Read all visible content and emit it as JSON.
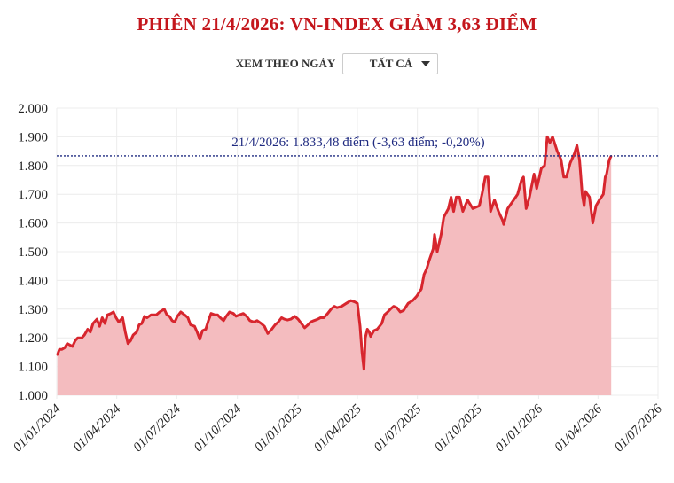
{
  "header": {
    "title": "PHIÊN 21/4/2026: VN-INDEX GIẢM 3,63 ĐIỂM"
  },
  "filter": {
    "label": "XEM THEO NGÀY",
    "selected": "TẤT CẢ",
    "icon": "caret-down-icon"
  },
  "colors": {
    "title": "#c4161c",
    "line": "#d7262e",
    "area": "#f4bcbf",
    "reference_line": "#1f2a80",
    "grid": "#ececec"
  },
  "chart_data": {
    "type": "area",
    "title": "",
    "xlabel": "",
    "ylabel": "",
    "ylim": [
      1000,
      2000
    ],
    "xlim": [
      "2024-01-01",
      "2026-07-01"
    ],
    "grid": true,
    "yticks": [
      "1.000",
      "1.100",
      "1.200",
      "1.300",
      "1.400",
      "1.500",
      "1.600",
      "1.700",
      "1.800",
      "1.900",
      "2.000"
    ],
    "ytick_values": [
      1000,
      1100,
      1200,
      1300,
      1400,
      1500,
      1600,
      1700,
      1800,
      1900,
      2000
    ],
    "xticks": [
      "01/01/2024",
      "01/04/2024",
      "01/07/2024",
      "01/10/2024",
      "01/01/2025",
      "01/04/2025",
      "01/07/2025",
      "01/10/2025",
      "01/01/2026",
      "01/04/2026",
      "01/07/2026"
    ],
    "xtick_dates": [
      "2024-01-01",
      "2024-04-01",
      "2024-07-01",
      "2024-10-01",
      "2025-01-01",
      "2025-04-01",
      "2025-07-01",
      "2025-10-01",
      "2026-01-01",
      "2026-04-01",
      "2026-07-01"
    ],
    "reference_line": {
      "value": 1833.48,
      "label": "21/4/2026: 1.833,48 điểm (-3,63 điểm; -0,20%)"
    },
    "x": [
      "2024-01-02",
      "2024-01-05",
      "2024-01-09",
      "2024-01-13",
      "2024-01-17",
      "2024-01-21",
      "2024-01-25",
      "2024-01-29",
      "2024-02-02",
      "2024-02-08",
      "2024-02-12",
      "2024-02-17",
      "2024-02-21",
      "2024-02-25",
      "2024-03-02",
      "2024-03-06",
      "2024-03-10",
      "2024-03-14",
      "2024-03-18",
      "2024-03-23",
      "2024-03-27",
      "2024-03-31",
      "2024-04-04",
      "2024-04-10",
      "2024-04-14",
      "2024-04-18",
      "2024-04-22",
      "2024-04-26",
      "2024-05-01",
      "2024-05-05",
      "2024-05-09",
      "2024-05-13",
      "2024-05-17",
      "2024-05-23",
      "2024-05-27",
      "2024-05-31",
      "2024-06-05",
      "2024-06-12",
      "2024-06-16",
      "2024-06-20",
      "2024-06-24",
      "2024-06-28",
      "2024-07-02",
      "2024-07-07",
      "2024-07-13",
      "2024-07-18",
      "2024-07-22",
      "2024-07-28",
      "2024-08-01",
      "2024-08-05",
      "2024-08-09",
      "2024-08-14",
      "2024-08-18",
      "2024-08-22",
      "2024-08-28",
      "2024-09-01",
      "2024-09-05",
      "2024-09-10",
      "2024-09-14",
      "2024-09-19",
      "2024-09-25",
      "2024-09-29",
      "2024-10-04",
      "2024-10-10",
      "2024-10-15",
      "2024-10-20",
      "2024-10-26",
      "2024-10-31",
      "2024-11-06",
      "2024-11-11",
      "2024-11-16",
      "2024-11-22",
      "2024-11-27",
      "2024-12-02",
      "2024-12-07",
      "2024-12-11",
      "2024-12-16",
      "2024-12-21",
      "2024-12-27",
      "2025-01-01",
      "2025-01-06",
      "2025-01-11",
      "2025-01-16",
      "2025-01-20",
      "2025-01-25",
      "2025-01-31",
      "2025-02-04",
      "2025-02-09",
      "2025-02-15",
      "2025-02-20",
      "2025-02-25",
      "2025-03-01",
      "2025-03-08",
      "2025-03-15",
      "2025-03-22",
      "2025-03-28",
      "2025-04-01",
      "2025-04-05",
      "2025-04-08",
      "2025-04-11",
      "2025-04-13",
      "2025-04-16",
      "2025-04-19",
      "2025-04-21",
      "2025-04-26",
      "2025-05-01",
      "2025-05-08",
      "2025-05-12",
      "2025-05-17",
      "2025-05-21",
      "2025-05-26",
      "2025-05-31",
      "2025-06-05",
      "2025-06-10",
      "2025-06-17",
      "2025-06-24",
      "2025-06-30",
      "2025-07-07",
      "2025-07-11",
      "2025-07-15",
      "2025-07-19",
      "2025-07-25",
      "2025-07-27",
      "2025-07-31",
      "2025-08-06",
      "2025-08-10",
      "2025-08-17",
      "2025-08-21",
      "2025-08-25",
      "2025-08-29",
      "2025-09-03",
      "2025-09-08",
      "2025-09-15",
      "2025-09-23",
      "2025-10-03",
      "2025-10-07",
      "2025-10-12",
      "2025-10-16",
      "2025-10-20",
      "2025-10-26",
      "2025-11-01",
      "2025-11-07",
      "2025-11-09",
      "2025-11-15",
      "2025-11-21",
      "2025-11-30",
      "2025-12-06",
      "2025-12-09",
      "2025-12-13",
      "2025-12-18",
      "2025-12-25",
      "2025-12-29",
      "2026-01-05",
      "2026-01-10",
      "2026-01-14",
      "2026-01-18",
      "2026-01-22",
      "2026-01-29",
      "2026-02-04",
      "2026-02-08",
      "2026-02-12",
      "2026-02-18",
      "2026-02-24",
      "2026-02-28",
      "2026-03-04",
      "2026-03-08",
      "2026-03-11",
      "2026-03-13",
      "2026-03-19",
      "2026-03-24",
      "2026-03-29",
      "2026-04-03",
      "2026-04-09",
      "2026-04-12",
      "2026-04-14",
      "2026-04-18",
      "2026-04-21"
    ],
    "values": [
      1140,
      1160,
      1160,
      1165,
      1180,
      1175,
      1170,
      1190,
      1200,
      1200,
      1210,
      1230,
      1220,
      1250,
      1265,
      1240,
      1270,
      1250,
      1280,
      1285,
      1290,
      1270,
      1255,
      1270,
      1220,
      1180,
      1190,
      1210,
      1220,
      1245,
      1250,
      1275,
      1270,
      1280,
      1280,
      1280,
      1290,
      1300,
      1280,
      1275,
      1260,
      1255,
      1275,
      1290,
      1280,
      1270,
      1245,
      1240,
      1220,
      1195,
      1225,
      1230,
      1260,
      1285,
      1280,
      1280,
      1270,
      1260,
      1275,
      1290,
      1285,
      1275,
      1280,
      1285,
      1275,
      1260,
      1255,
      1260,
      1250,
      1240,
      1215,
      1230,
      1245,
      1255,
      1270,
      1265,
      1262,
      1265,
      1275,
      1265,
      1250,
      1235,
      1245,
      1255,
      1260,
      1265,
      1270,
      1270,
      1285,
      1300,
      1310,
      1305,
      1310,
      1320,
      1330,
      1325,
      1320,
      1240,
      1150,
      1090,
      1200,
      1230,
      1220,
      1205,
      1225,
      1230,
      1250,
      1280,
      1290,
      1300,
      1310,
      1305,
      1290,
      1295,
      1320,
      1330,
      1345,
      1370,
      1420,
      1440,
      1470,
      1510,
      1560,
      1500,
      1560,
      1620,
      1650,
      1690,
      1640,
      1690,
      1690,
      1640,
      1680,
      1650,
      1660,
      1700,
      1760,
      1760,
      1640,
      1680,
      1640,
      1610,
      1595,
      1650,
      1670,
      1700,
      1750,
      1760,
      1650,
      1690,
      1770,
      1720,
      1790,
      1800,
      1900,
      1880,
      1900,
      1850,
      1820,
      1760,
      1760,
      1810,
      1840,
      1870,
      1820,
      1700,
      1660,
      1710,
      1690,
      1600,
      1660,
      1680,
      1700,
      1760,
      1770,
      1820,
      1833.48
    ]
  }
}
